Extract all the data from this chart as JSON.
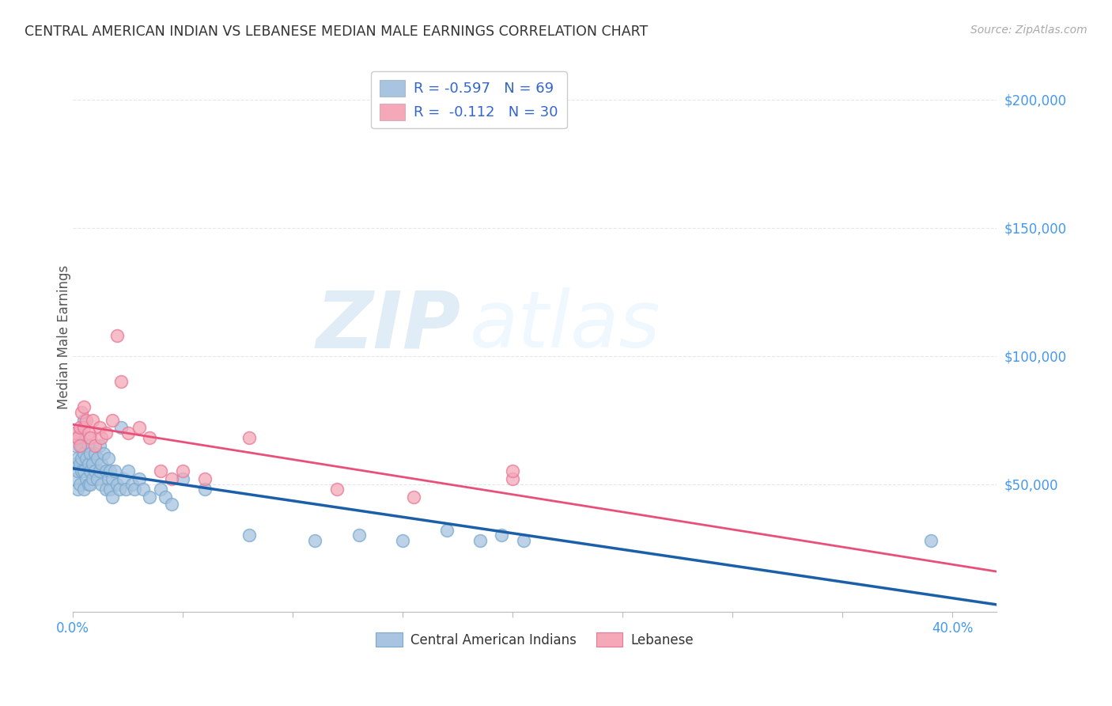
{
  "title": "CENTRAL AMERICAN INDIAN VS LEBANESE MEDIAN MALE EARNINGS CORRELATION CHART",
  "source": "Source: ZipAtlas.com",
  "ylabel": "Median Male Earnings",
  "ylim": [
    0,
    215000
  ],
  "xlim": [
    0.0,
    0.42
  ],
  "blue_R": "-0.597",
  "blue_N": "69",
  "pink_R": "-0.112",
  "pink_N": "30",
  "blue_color": "#a8c4e0",
  "pink_color": "#f4a8b8",
  "blue_edge_color": "#7aaace",
  "pink_edge_color": "#e87898",
  "blue_line_color": "#1a5fa8",
  "pink_line_color": "#e8507a",
  "tick_color": "#4499ee",
  "background_color": "#ffffff",
  "watermark_zip": "ZIP",
  "watermark_atlas": "atlas",
  "grid_color": "#e0e8f0",
  "blue_x": [
    0.001,
    0.001,
    0.001,
    0.002,
    0.002,
    0.002,
    0.003,
    0.003,
    0.003,
    0.004,
    0.004,
    0.004,
    0.005,
    0.005,
    0.005,
    0.006,
    0.006,
    0.007,
    0.007,
    0.007,
    0.008,
    0.008,
    0.008,
    0.009,
    0.009,
    0.01,
    0.01,
    0.011,
    0.011,
    0.012,
    0.012,
    0.013,
    0.013,
    0.014,
    0.015,
    0.015,
    0.016,
    0.016,
    0.017,
    0.017,
    0.018,
    0.018,
    0.019,
    0.02,
    0.021,
    0.022,
    0.023,
    0.024,
    0.025,
    0.027,
    0.028,
    0.03,
    0.032,
    0.035,
    0.04,
    0.042,
    0.045,
    0.05,
    0.06,
    0.08,
    0.11,
    0.13,
    0.15,
    0.17,
    0.185,
    0.195,
    0.205,
    0.39,
    0.005
  ],
  "blue_y": [
    65000,
    58000,
    52000,
    60000,
    55000,
    48000,
    70000,
    58000,
    50000,
    65000,
    60000,
    55000,
    62000,
    55000,
    48000,
    60000,
    52000,
    65000,
    58000,
    50000,
    62000,
    55000,
    50000,
    58000,
    52000,
    62000,
    55000,
    60000,
    52000,
    65000,
    55000,
    58000,
    50000,
    62000,
    55000,
    48000,
    60000,
    52000,
    55000,
    48000,
    52000,
    45000,
    55000,
    50000,
    48000,
    72000,
    52000,
    48000,
    55000,
    50000,
    48000,
    52000,
    48000,
    45000,
    48000,
    45000,
    42000,
    52000,
    48000,
    30000,
    28000,
    30000,
    28000,
    32000,
    28000,
    30000,
    28000,
    28000,
    75000
  ],
  "pink_x": [
    0.001,
    0.002,
    0.003,
    0.003,
    0.004,
    0.005,
    0.005,
    0.006,
    0.007,
    0.008,
    0.009,
    0.01,
    0.012,
    0.013,
    0.015,
    0.018,
    0.02,
    0.022,
    0.025,
    0.03,
    0.035,
    0.04,
    0.045,
    0.05,
    0.06,
    0.08,
    0.12,
    0.155,
    0.2,
    0.2
  ],
  "pink_y": [
    70000,
    68000,
    72000,
    65000,
    78000,
    80000,
    72000,
    75000,
    70000,
    68000,
    75000,
    65000,
    72000,
    68000,
    70000,
    75000,
    108000,
    90000,
    70000,
    72000,
    68000,
    55000,
    52000,
    55000,
    52000,
    68000,
    48000,
    45000,
    52000,
    55000
  ]
}
